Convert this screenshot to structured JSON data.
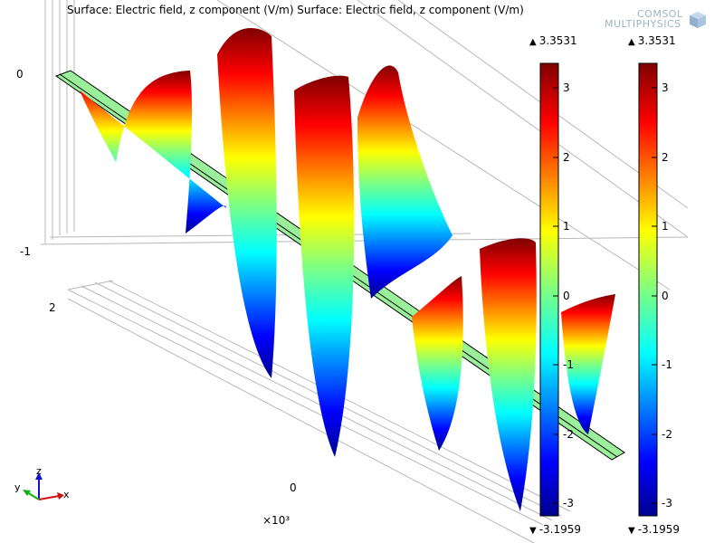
{
  "title": "Surface: Electric field, z component (V/m)  Surface: Electric field, z component (V/m)",
  "logo": {
    "line1": "COMSOL",
    "line2": "MULTIPHYSICS",
    "icon": "comsol-cube-icon"
  },
  "axis_labels": {
    "z_top": "0",
    "z_bottom": "-1",
    "y_value": "2",
    "x_value": "0",
    "x_scale": "×10³"
  },
  "colorbars": [
    {
      "max_label": "3.3531",
      "min_label": "-3.1959",
      "max": 3.3531,
      "min": -3.1959,
      "ticks": [
        "3",
        "2",
        "1",
        "0",
        "-1",
        "-2",
        "-3"
      ]
    },
    {
      "max_label": "3.3531",
      "min_label": "-3.1959",
      "max": 3.3531,
      "min": -3.1959,
      "ticks": [
        "3",
        "2",
        "1",
        "0",
        "-1",
        "-2",
        "-3"
      ]
    }
  ],
  "triad": {
    "x": "x",
    "y": "y",
    "z": "z"
  },
  "colors": {
    "colormap": [
      "#00008f",
      "#0000ff",
      "#00ffff",
      "#80ff80",
      "#ffff00",
      "#ff0000",
      "#800000"
    ]
  }
}
